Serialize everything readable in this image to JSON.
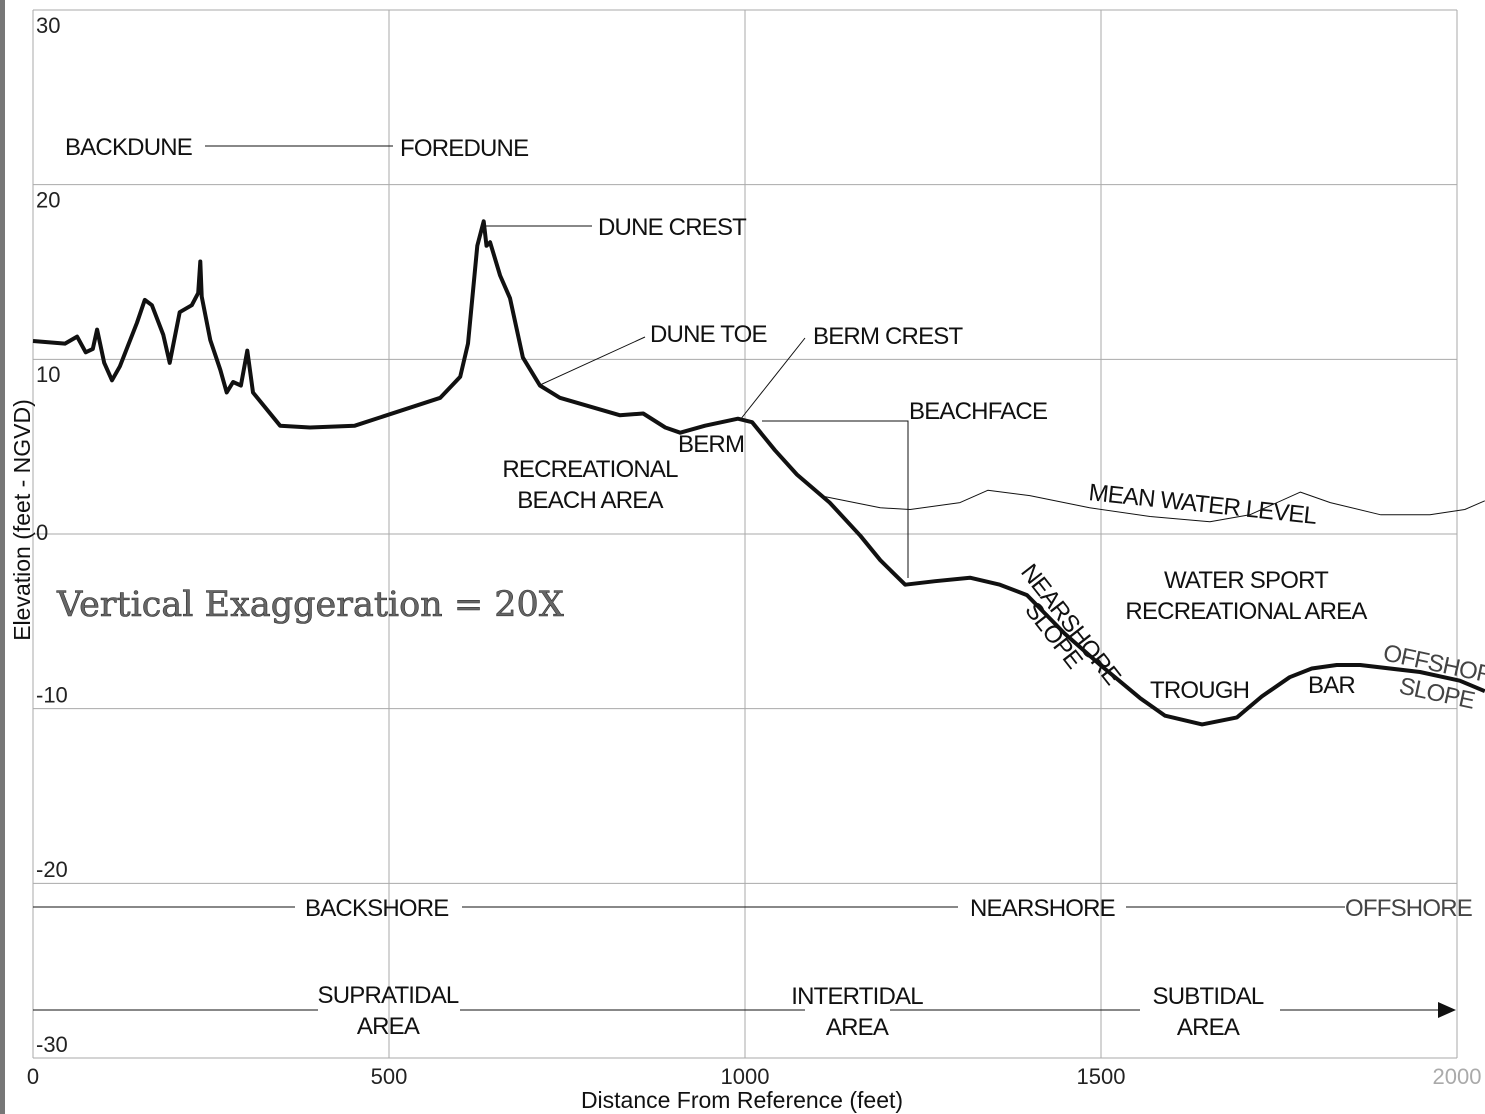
{
  "chart_data": {
    "type": "line",
    "xlabel": "Distance From Reference  (feet)",
    "ylabel": "Elevation (feet - NGVD)",
    "xlim": [
      0,
      2040
    ],
    "xticks": [
      0,
      500,
      1000,
      1500,
      2000
    ],
    "ylim": [
      -30,
      30
    ],
    "yticks": [
      30,
      20,
      10,
      0,
      -10,
      -20,
      -30
    ],
    "grid": true,
    "series": [
      {
        "color": "#111111",
        "width": 4,
        "x": [
          0,
          45,
          62,
          74,
          84,
          90,
          100,
          111,
          122,
          146,
          157,
          167,
          183,
          192,
          206,
          223,
          232,
          235,
          237,
          249,
          263,
          272,
          281,
          292,
          301,
          309,
          347,
          389,
          452,
          572,
          600,
          611,
          624,
          633,
          637,
          642,
          656,
          670,
          688,
          712,
          740,
          824,
          857,
          888,
          909,
          944,
          990,
          1010,
          1042,
          1073,
          1119,
          1162,
          1190,
          1225,
          1267,
          1316,
          1358,
          1396,
          1449,
          1499,
          1555,
          1590,
          1642,
          1691,
          1726,
          1765,
          1796,
          1831,
          1864,
          1948,
          2004,
          2039
        ],
        "values": [
          11.05,
          10.9,
          11.3,
          10.4,
          10.6,
          11.7,
          9.8,
          8.8,
          9.6,
          12.1,
          13.4,
          13.1,
          11.4,
          9.8,
          12.7,
          13.1,
          13.8,
          15.6,
          13.6,
          11.1,
          9.4,
          8.1,
          8.7,
          8.5,
          10.5,
          8.1,
          6.2,
          6.1,
          6.2,
          7.8,
          9.0,
          10.9,
          16.5,
          17.9,
          16.5,
          16.7,
          14.8,
          13.5,
          10.1,
          8.5,
          7.8,
          6.8,
          6.9,
          6.1,
          5.8,
          6.2,
          6.6,
          6.4,
          4.8,
          3.4,
          1.8,
          -0.1,
          -1.5,
          -2.9,
          -2.7,
          -2.5,
          -2.9,
          -3.5,
          -5.7,
          -7.5,
          -9.4,
          -10.4,
          -10.9,
          -10.5,
          -9.3,
          -8.2,
          -7.7,
          -7.5,
          -7.5,
          -7.9,
          -8.4,
          -9.0
        ]
      },
      {
        "color": "#111111",
        "width": 1,
        "x": [
          1105,
          1190,
          1232,
          1302,
          1341,
          1400,
          1484,
          1569,
          1653,
          1709,
          1780,
          1822,
          1893,
          1962,
          2011,
          2039
        ],
        "values": [
          2.2,
          1.5,
          1.4,
          1.8,
          2.5,
          2.2,
          1.5,
          1.0,
          0.7,
          1.1,
          2.4,
          1.8,
          1.1,
          1.1,
          1.4,
          1.9
        ]
      }
    ],
    "annotations": [
      "BACKDUNE",
      "FOREDUNE",
      "DUNE CREST",
      "DUNE TOE",
      "BERM CREST",
      "BEACHFACE",
      "BERM",
      "RECREATIONAL",
      "BEACH AREA",
      "MEAN WATER LEVEL",
      "WATER SPORT",
      "RECREATIONAL AREA",
      "TROUGH",
      "BAR",
      "NEARSHORE",
      "SLOPE",
      "OFFSHORE",
      "SLOPE",
      "Vertical Exaggeration = 20X",
      "BACKSHORE",
      "NEARSHORE",
      "OFFSHORE",
      "SUPRATIDAL",
      "AREA",
      "INTERTIDAL",
      "AREA",
      "SUBTIDAL",
      "AREA"
    ]
  }
}
